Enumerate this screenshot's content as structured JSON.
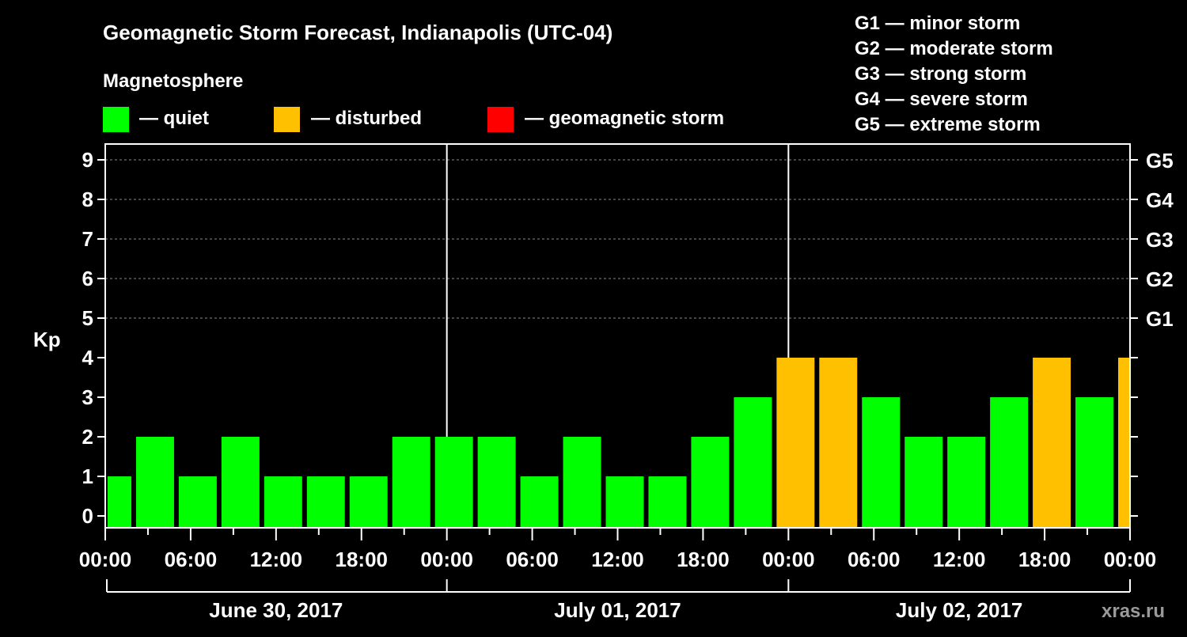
{
  "chart_data": {
    "type": "bar",
    "title": "Geomagnetic Storm Forecast, Indianapolis (UTC-04)",
    "legend_title": "Magnetosphere",
    "legend": [
      {
        "label": "— quiet",
        "color": "#00ff00"
      },
      {
        "label": "— disturbed",
        "color": "#ffc000"
      },
      {
        "label": "— geomagnetic storm",
        "color": "#ff0000"
      }
    ],
    "storm_scale": [
      "G1 — minor storm",
      "G2 — moderate storm",
      "G3 — strong storm",
      "G4 — severe storm",
      "G5 — extreme storm"
    ],
    "ylabel": "Kp",
    "ylim": [
      0,
      9
    ],
    "y_ticks": [
      "0",
      "1",
      "2",
      "3",
      "4",
      "5",
      "6",
      "7",
      "8",
      "9"
    ],
    "right_ticks": [
      {
        "kp": 5,
        "label": "G1"
      },
      {
        "kp": 6,
        "label": "G2"
      },
      {
        "kp": 7,
        "label": "G3"
      },
      {
        "kp": 8,
        "label": "G4"
      },
      {
        "kp": 9,
        "label": "G5"
      }
    ],
    "x_range_hours": [
      0,
      72
    ],
    "x_tick_labels": [
      "00:00",
      "06:00",
      "12:00",
      "18:00",
      "00:00",
      "06:00",
      "12:00",
      "18:00",
      "00:00",
      "06:00",
      "12:00",
      "18:00",
      "00:00"
    ],
    "days": [
      "June 30, 2017",
      "July 01, 2017",
      "July 02, 2017"
    ],
    "bars": [
      {
        "start": 0,
        "end": 2,
        "kp": 1,
        "level": "quiet"
      },
      {
        "start": 2,
        "end": 5,
        "kp": 2,
        "level": "quiet"
      },
      {
        "start": 5,
        "end": 8,
        "kp": 1,
        "level": "quiet"
      },
      {
        "start": 8,
        "end": 11,
        "kp": 2,
        "level": "quiet"
      },
      {
        "start": 11,
        "end": 14,
        "kp": 1,
        "level": "quiet"
      },
      {
        "start": 14,
        "end": 17,
        "kp": 1,
        "level": "quiet"
      },
      {
        "start": 17,
        "end": 20,
        "kp": 1,
        "level": "quiet"
      },
      {
        "start": 20,
        "end": 23,
        "kp": 2,
        "level": "quiet"
      },
      {
        "start": 23,
        "end": 26,
        "kp": 2,
        "level": "quiet"
      },
      {
        "start": 26,
        "end": 29,
        "kp": 2,
        "level": "quiet"
      },
      {
        "start": 29,
        "end": 32,
        "kp": 1,
        "level": "quiet"
      },
      {
        "start": 32,
        "end": 35,
        "kp": 2,
        "level": "quiet"
      },
      {
        "start": 35,
        "end": 38,
        "kp": 1,
        "level": "quiet"
      },
      {
        "start": 38,
        "end": 41,
        "kp": 1,
        "level": "quiet"
      },
      {
        "start": 41,
        "end": 44,
        "kp": 2,
        "level": "quiet"
      },
      {
        "start": 44,
        "end": 47,
        "kp": 3,
        "level": "quiet"
      },
      {
        "start": 47,
        "end": 50,
        "kp": 4,
        "level": "disturbed"
      },
      {
        "start": 50,
        "end": 53,
        "kp": 4,
        "level": "disturbed"
      },
      {
        "start": 53,
        "end": 56,
        "kp": 3,
        "level": "quiet"
      },
      {
        "start": 56,
        "end": 59,
        "kp": 2,
        "level": "quiet"
      },
      {
        "start": 59,
        "end": 62,
        "kp": 2,
        "level": "quiet"
      },
      {
        "start": 62,
        "end": 65,
        "kp": 3,
        "level": "quiet"
      },
      {
        "start": 65,
        "end": 68,
        "kp": 4,
        "level": "disturbed"
      },
      {
        "start": 68,
        "end": 71,
        "kp": 3,
        "level": "quiet"
      },
      {
        "start": 71,
        "end": 72,
        "kp": 4,
        "level": "disturbed"
      }
    ],
    "colors": {
      "quiet": "#00ff00",
      "disturbed": "#ffc000",
      "storm": "#ff0000"
    },
    "watermark": "xras.ru"
  }
}
